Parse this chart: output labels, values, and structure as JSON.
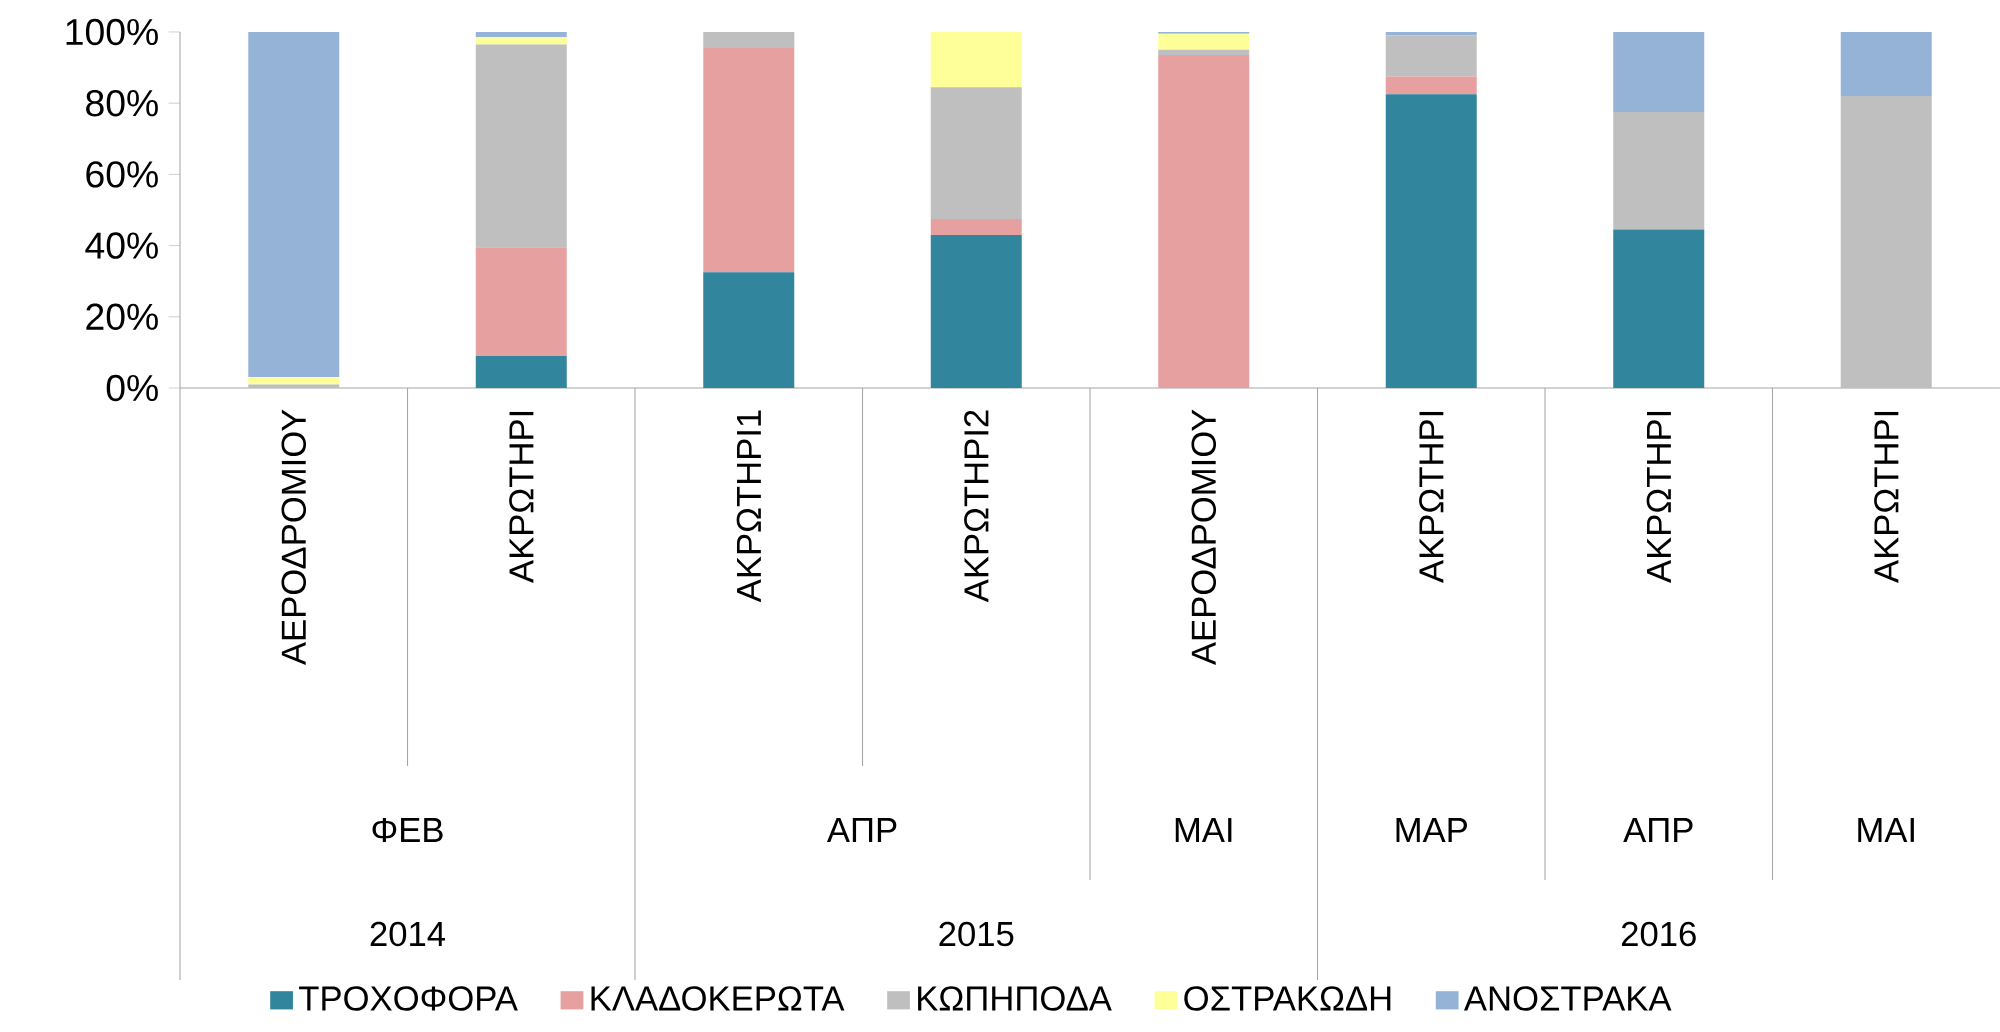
{
  "chart_data": {
    "type": "bar",
    "stacked": true,
    "categories": [
      "ΑΕΡΟΔΡΟΜΙΟΥ",
      "ΑΚΡΩΤΗΡΙ",
      "ΑΚΡΩΤΗΡΙ1",
      "ΑΚΡΩΤΗΡΙ2",
      "ΑΕΡΟΔΡΟΜΙΟΥ",
      "ΑΚΡΩΤΗΡΙ",
      "ΑΚΡΩΤΗΡΙ",
      "ΑΚΡΩΤΗΡΙ"
    ],
    "series": [
      {
        "name": "ΤΡΟΧΟΦΟΡΑ",
        "color": "#31859c",
        "values": [
          0,
          9,
          32.5,
          43,
          0,
          82.5,
          44.5,
          0
        ]
      },
      {
        "name": "ΚΛΑΔΟΚΕΡΩΤΑ",
        "color": "#e6a0a0",
        "values": [
          0,
          30.5,
          63,
          4.5,
          93.5,
          5,
          0,
          0
        ]
      },
      {
        "name": "ΚΩΠΗΠΟΔΑ",
        "color": "#bfbfbf",
        "values": [
          1,
          57,
          4.5,
          37,
          1.5,
          11.5,
          33,
          82
        ]
      },
      {
        "name": "ΟΣΤΡΑΚΩΔΗ",
        "color": "#ffff99",
        "values": [
          2,
          2,
          0,
          15.5,
          4.5,
          0,
          0,
          0
        ]
      },
      {
        "name": "ΑΝΟΣΤΡΑΚΑ",
        "color": "#95b3d7",
        "values": [
          97,
          1.5,
          0,
          0,
          0.5,
          1,
          22.5,
          18
        ]
      }
    ],
    "ylim": [
      0,
      100
    ],
    "yticks": [
      {
        "value": 0,
        "label": "0%"
      },
      {
        "value": 20,
        "label": "20%"
      },
      {
        "value": 40,
        "label": "40%"
      },
      {
        "value": 60,
        "label": "60%"
      },
      {
        "value": 80,
        "label": "80%"
      },
      {
        "value": 100,
        "label": "100%"
      }
    ],
    "annotations": [
      "ΦΕΒ",
      "ΑΠΡ",
      "ΜΑΙ",
      "ΜΑΡ",
      "ΑΠΡ",
      "ΜΑΙ",
      "2014",
      "2015",
      "2016"
    ],
    "legend": "bottom"
  }
}
